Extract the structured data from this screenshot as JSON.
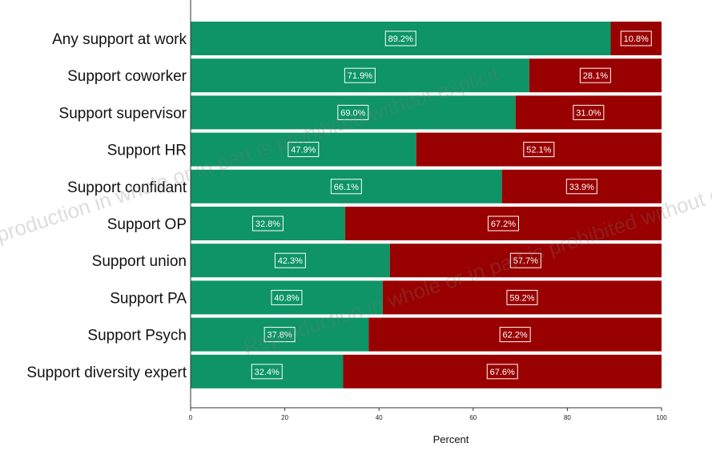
{
  "chart_data": {
    "type": "bar",
    "orientation": "horizontal",
    "stacked": true,
    "categories": [
      "Any support at work",
      "Support coworker",
      "Support supervisor",
      "Support HR",
      "Support confidant",
      "Support OP",
      "Support union",
      "Support PA",
      "Support Psych",
      "Support diversity expert"
    ],
    "series": [
      {
        "color": "#0e9466",
        "values": [
          89.2,
          71.9,
          69.0,
          47.9,
          66.1,
          32.8,
          42.3,
          40.8,
          37.8,
          32.4
        ],
        "labels": [
          "89.2%",
          "71.9%",
          "69.0%",
          "47.9%",
          "66.1%",
          "32.8%",
          "42.3%",
          "40.8%",
          "37.8%",
          "32.4%"
        ]
      },
      {
        "color": "#990000",
        "values": [
          10.8,
          28.1,
          31.0,
          52.1,
          33.9,
          67.2,
          57.7,
          59.2,
          62.2,
          67.6
        ],
        "labels": [
          "10.8%",
          "28.1%",
          "31.0%",
          "52.1%",
          "33.9%",
          "67.2%",
          "57.7%",
          "59.2%",
          "62.2%",
          "67.6%"
        ]
      }
    ],
    "xlabel": "Percent",
    "xlim": [
      0,
      100
    ],
    "xticks": [
      "0",
      "20",
      "40",
      "60",
      "80",
      "100"
    ],
    "grid": false
  },
  "watermark_text": "Reproduction in whole or in part is prohibited without explicit"
}
